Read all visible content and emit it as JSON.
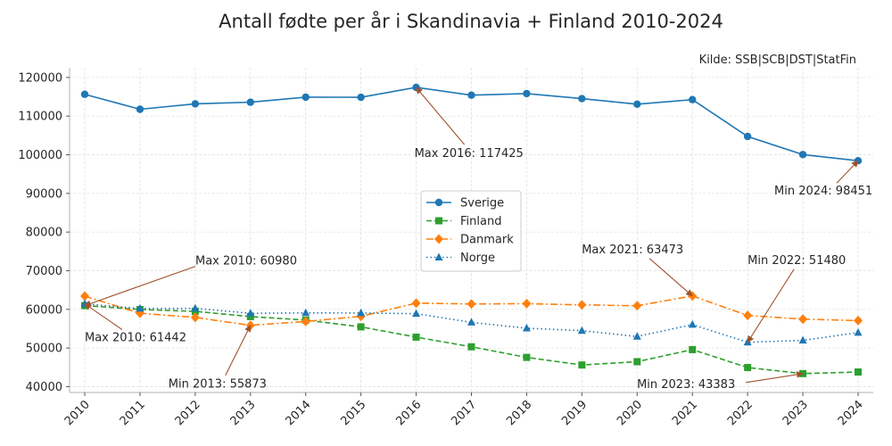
{
  "chart_data": {
    "type": "line",
    "title": "Antall fødte per år i Skandinavia + Finland 2010-2024",
    "source": "Kilde: SSB|SCB|DST|StatFin",
    "x": [
      "2010",
      "2011",
      "2012",
      "2013",
      "2014",
      "2015",
      "2016",
      "2017",
      "2018",
      "2019",
      "2020",
      "2021",
      "2022",
      "2023",
      "2024"
    ],
    "ylim": [
      38500,
      122500
    ],
    "yticks": [
      "40000",
      "50000",
      "60000",
      "70000",
      "80000",
      "90000",
      "100000",
      "110000",
      "120000"
    ],
    "grid": true,
    "legend_position": "center",
    "series": [
      {
        "name": "Sverige",
        "color": "#1f77b4",
        "line_style": "solid",
        "marker": "circle",
        "values": [
          115641,
          111770,
          113177,
          113593,
          114907,
          114870,
          117425,
          115416,
          115832,
          114523,
          113077,
          114263,
          104734,
          100051,
          98451
        ]
      },
      {
        "name": "Finland",
        "color": "#2ca02c",
        "line_style": "dashed",
        "marker": "square",
        "values": [
          60980,
          59961,
          59493,
          58134,
          57232,
          55472,
          52814,
          50321,
          47577,
          45613,
          46463,
          49594,
          44951,
          43383,
          43800
        ]
      },
      {
        "name": "Danmark",
        "color": "#ff7f0e",
        "line_style": "dashdot",
        "marker": "diamond",
        "values": [
          63411,
          58998,
          57916,
          55873,
          56870,
          58205,
          61614,
          61397,
          61476,
          61167,
          60937,
          63473,
          58430,
          57469,
          57100
        ]
      },
      {
        "name": "Norge",
        "color": "#1f77b4",
        "line_style": "dotted",
        "marker": "triangle",
        "values": [
          61442,
          60220,
          60255,
          58995,
          59084,
          59058,
          58890,
          56633,
          55120,
          54495,
          52979,
          56060,
          51480,
          51980,
          54000
        ]
      }
    ],
    "annotations": [
      {
        "text": "Max 2016: 117425",
        "series": 0,
        "x_index": 6
      },
      {
        "text": "Min 2024: 98451",
        "series": 0,
        "x_index": 14
      },
      {
        "text": "Max 2010: 60980",
        "series": 1,
        "x_index": 0
      },
      {
        "text": "Min 2023: 43383",
        "series": 1,
        "x_index": 13
      },
      {
        "text": "Max 2021: 63473",
        "series": 2,
        "x_index": 11
      },
      {
        "text": "Min 2013: 55873",
        "series": 2,
        "x_index": 3
      },
      {
        "text": "Max 2010: 61442",
        "series": 3,
        "x_index": 0
      },
      {
        "text": "Min 2022: 51480",
        "series": 3,
        "x_index": 12
      }
    ],
    "annotation_arrow_color": "#a0522d"
  }
}
